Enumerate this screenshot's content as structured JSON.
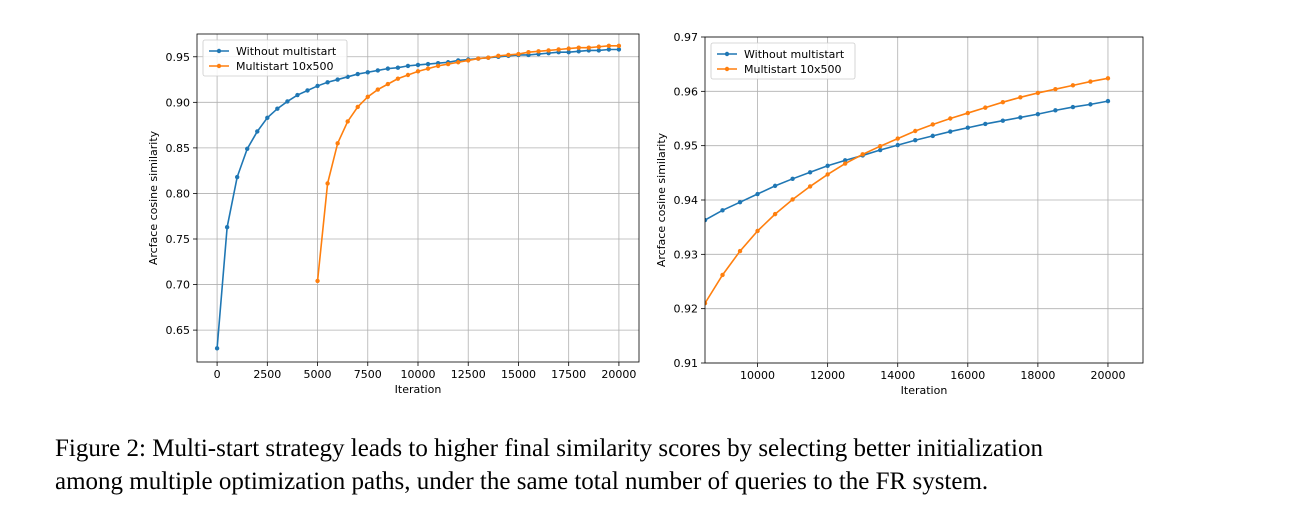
{
  "caption": {
    "line1": "Figure 2: Multi-start strategy leads to higher final similarity scores by selecting better initialization",
    "line2": "among multiple optimization paths, under the same total number of queries to the FR system."
  },
  "colors": {
    "blue": "#1f77b4",
    "orange": "#ff7f0e"
  },
  "chart_data": [
    {
      "type": "line",
      "xlabel": "Iteration",
      "ylabel": "Arcface cosine similarity",
      "xlim": [
        -1000,
        21000
      ],
      "ylim": [
        0.615,
        0.975
      ],
      "xticks": [
        0,
        2500,
        5000,
        7500,
        10000,
        12500,
        15000,
        17500,
        20000
      ],
      "yticks": [
        0.65,
        0.7,
        0.75,
        0.8,
        0.85,
        0.9,
        0.95
      ],
      "ytick_decimals": 2,
      "grid": true,
      "legend_position": "upper-left",
      "series": [
        {
          "name": "Without multistart",
          "color": "#1f77b4",
          "x": [
            0,
            500,
            1000,
            1500,
            2000,
            2500,
            3000,
            3500,
            4000,
            4500,
            5000,
            5500,
            6000,
            6500,
            7000,
            7500,
            8000,
            8500,
            9000,
            9500,
            10000,
            10500,
            11000,
            11500,
            12000,
            12500,
            13000,
            13500,
            14000,
            14500,
            15000,
            15500,
            16000,
            16500,
            17000,
            17500,
            18000,
            18500,
            19000,
            19500,
            20000
          ],
          "y": [
            0.63,
            0.763,
            0.818,
            0.849,
            0.868,
            0.883,
            0.893,
            0.901,
            0.908,
            0.913,
            0.918,
            0.922,
            0.925,
            0.928,
            0.931,
            0.933,
            0.935,
            0.937,
            0.938,
            0.94,
            0.941,
            0.942,
            0.943,
            0.944,
            0.946,
            0.947,
            0.948,
            0.949,
            0.95,
            0.951,
            0.952,
            0.952,
            0.953,
            0.954,
            0.955,
            0.955,
            0.956,
            0.957,
            0.957,
            0.958,
            0.958
          ]
        },
        {
          "name": "Multistart 10x500",
          "color": "#ff7f0e",
          "x": [
            5000,
            5500,
            6000,
            6500,
            7000,
            7500,
            8000,
            8500,
            9000,
            9500,
            10000,
            10500,
            11000,
            11500,
            12000,
            12500,
            13000,
            13500,
            14000,
            14500,
            15000,
            15500,
            16000,
            16500,
            17000,
            17500,
            18000,
            18500,
            19000,
            19500,
            20000
          ],
          "y": [
            0.704,
            0.811,
            0.855,
            0.879,
            0.895,
            0.906,
            0.914,
            0.92,
            0.926,
            0.93,
            0.934,
            0.937,
            0.94,
            0.942,
            0.944,
            0.946,
            0.948,
            0.949,
            0.951,
            0.952,
            0.953,
            0.955,
            0.956,
            0.957,
            0.958,
            0.959,
            0.96,
            0.96,
            0.961,
            0.962,
            0.962
          ]
        }
      ]
    },
    {
      "type": "line",
      "xlabel": "Iteration",
      "ylabel": "Arcface cosine similarity",
      "xlim": [
        8500,
        21000
      ],
      "ylim": [
        0.91,
        0.97
      ],
      "xticks": [
        10000,
        12000,
        14000,
        16000,
        18000,
        20000
      ],
      "yticks": [
        0.91,
        0.92,
        0.93,
        0.94,
        0.95,
        0.96,
        0.97
      ],
      "ytick_decimals": 2,
      "grid": true,
      "legend_position": "upper-left",
      "series": [
        {
          "name": "Without multistart",
          "color": "#1f77b4",
          "x": [
            8500,
            9000,
            9500,
            10000,
            10500,
            11000,
            11500,
            12000,
            12500,
            13000,
            13500,
            14000,
            14500,
            15000,
            15500,
            16000,
            16500,
            17000,
            17500,
            18000,
            18500,
            19000,
            19500,
            20000
          ],
          "y": [
            0.9363,
            0.9381,
            0.9396,
            0.9411,
            0.9426,
            0.9439,
            0.9451,
            0.9463,
            0.9473,
            0.9482,
            0.9492,
            0.9501,
            0.951,
            0.9518,
            0.9526,
            0.9533,
            0.954,
            0.9546,
            0.9552,
            0.9558,
            0.9565,
            0.9571,
            0.9576,
            0.9582
          ]
        },
        {
          "name": "Multistart 10x500",
          "color": "#ff7f0e",
          "x": [
            8500,
            9000,
            9500,
            10000,
            10500,
            11000,
            11500,
            12000,
            12500,
            13000,
            13500,
            14000,
            14500,
            15000,
            15500,
            16000,
            16500,
            17000,
            17500,
            18000,
            18500,
            19000,
            19500,
            20000
          ],
          "y": [
            0.921,
            0.9262,
            0.9306,
            0.9343,
            0.9374,
            0.9401,
            0.9425,
            0.9447,
            0.9467,
            0.9484,
            0.9499,
            0.9513,
            0.9527,
            0.9539,
            0.955,
            0.956,
            0.957,
            0.958,
            0.9589,
            0.9597,
            0.9604,
            0.9611,
            0.9618,
            0.9624
          ]
        }
      ]
    }
  ]
}
